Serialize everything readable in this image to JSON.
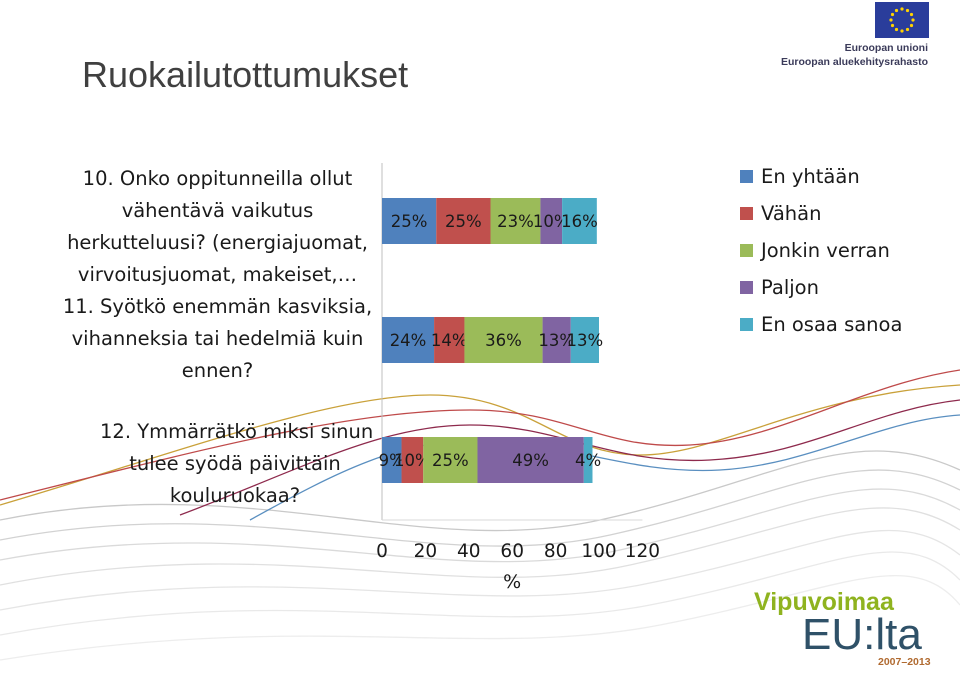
{
  "slide": {
    "title": "Ruokailutottumukset"
  },
  "questions": [
    {
      "lines": [
        "10. Onko oppitunneilla ollut",
        "vähentävä vaikutus",
        "herkutteluusi? (energiajuomat,",
        "virvoitusjuomat, makeiset,…"
      ]
    },
    {
      "lines": [
        "11. Syötkö enemmän kasviksia,",
        "vihanneksia tai hedelmiä kuin",
        "ennen?"
      ]
    },
    {
      "lines": [
        "12. Ymmärrätkö miksi sinun",
        "tulee syödä päivittäin",
        "kouluruokaa?"
      ]
    }
  ],
  "logos": {
    "eu_line1": "Euroopan unioni",
    "eu_line2": "Euroopan aluekehitysrahasto",
    "vipu_top": "Vipuvoimaa",
    "vipu_big": "EU:lta",
    "vipu_years": "2007–2013"
  },
  "chart_data": {
    "type": "bar",
    "orientation": "horizontal",
    "stacked": true,
    "categories": [
      "10. Onko oppitunneilla ollut vähentävä vaikutus herkutteluusi? (energiajuomat, virvoitusjuomat, makeiset,…",
      "11. Syötkö enemmän kasviksia, vihanneksia tai hedelmiä kuin ennen?",
      "12. Ymmärrätkö miksi sinun tulee syödä päivittäin kouluruokaa?"
    ],
    "series": [
      {
        "name": "En yhtään",
        "color": "#4f81bd",
        "values": [
          25,
          24,
          9
        ]
      },
      {
        "name": "Vähän",
        "color": "#c0504d",
        "values": [
          25,
          14,
          10
        ]
      },
      {
        "name": "Jonkin verran",
        "color": "#9bbb59",
        "values": [
          23,
          36,
          25
        ]
      },
      {
        "name": "Paljon",
        "color": "#8064a2",
        "values": [
          10,
          13,
          49
        ]
      },
      {
        "name": "En osaa sanoa",
        "color": "#4bacc6",
        "values": [
          16,
          13,
          4
        ]
      }
    ],
    "data_labels": [
      [
        "25%",
        "25%",
        "23%",
        "10%",
        "16%"
      ],
      [
        "24%",
        "14%",
        "36%",
        "13%",
        "13%"
      ],
      [
        "9%",
        "10%",
        "25%",
        "49%",
        "4%"
      ]
    ],
    "x_ticks": [
      "0",
      "20",
      "40",
      "60",
      "80",
      "100",
      "120"
    ],
    "xlim": [
      0,
      120
    ],
    "xlabel": "%",
    "legend": "right",
    "grid": false
  }
}
